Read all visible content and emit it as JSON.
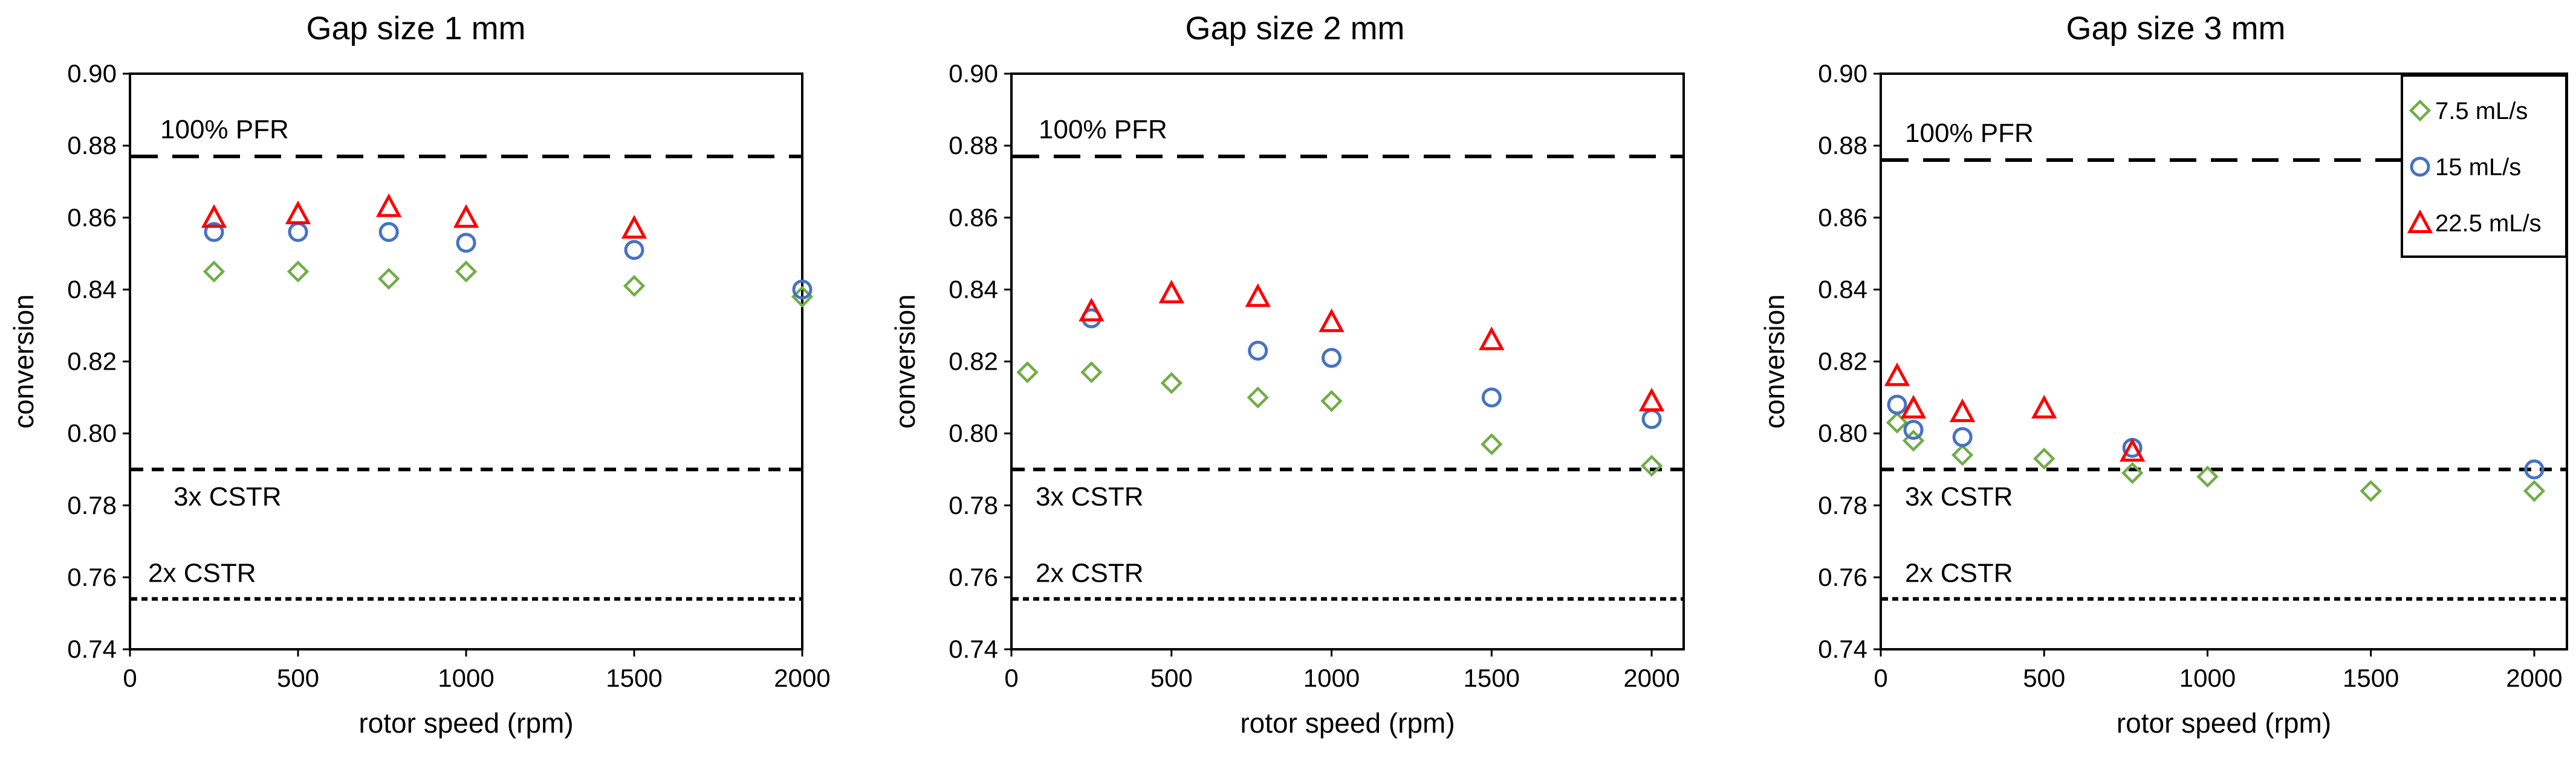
{
  "chart_data": [
    {
      "type": "scatter",
      "title": "Gap size 1 mm",
      "xlabel": "rotor speed (rpm)",
      "ylabel": "conversion",
      "xlim": [
        0,
        2000
      ],
      "ylim": [
        0.74,
        0.9
      ],
      "xticks": [
        "0",
        "500",
        "1000",
        "1500",
        "2000"
      ],
      "yticks": [
        "0.74",
        "0.76",
        "0.78",
        "0.80",
        "0.82",
        "0.84",
        "0.86",
        "0.88",
        "0.90"
      ],
      "grid": false,
      "series": [
        {
          "name": "7.5 mL/s",
          "marker": "diamond",
          "color": "#70AD47",
          "points": [
            [
              250,
              0.845
            ],
            [
              500,
              0.845
            ],
            [
              770,
              0.843
            ],
            [
              1000,
              0.845
            ],
            [
              1500,
              0.841
            ],
            [
              2000,
              0.838
            ]
          ]
        },
        {
          "name": "15 mL/s",
          "marker": "circle",
          "color": "#4472C4",
          "points": [
            [
              250,
              0.856
            ],
            [
              500,
              0.856
            ],
            [
              770,
              0.856
            ],
            [
              1000,
              0.853
            ],
            [
              1500,
              0.851
            ],
            [
              2000,
              0.84
            ]
          ]
        },
        {
          "name": "22.5 mL/s",
          "marker": "triangle",
          "color": "#FF0000",
          "points": [
            [
              250,
              0.86
            ],
            [
              500,
              0.861
            ],
            [
              770,
              0.863
            ],
            [
              1000,
              0.86
            ],
            [
              1500,
              0.857
            ]
          ]
        }
      ],
      "reference_lines": [
        {
          "label": "100% PFR",
          "y": 0.877,
          "style": "long-dash"
        },
        {
          "label": "3x CSTR",
          "y": 0.79,
          "style": "dash"
        },
        {
          "label": "2x CSTR",
          "y": 0.754,
          "style": "dot"
        }
      ]
    },
    {
      "type": "scatter",
      "title": "Gap size 2 mm",
      "xlabel": "rotor speed (rpm)",
      "ylabel": "conversion",
      "xlim": [
        0,
        2100
      ],
      "ylim": [
        0.74,
        0.9
      ],
      "xticks": [
        "0",
        "500",
        "1000",
        "1500",
        "2000"
      ],
      "yticks": [
        "0.74",
        "0.76",
        "0.78",
        "0.80",
        "0.82",
        "0.84",
        "0.86",
        "0.88",
        "0.90"
      ],
      "grid": false,
      "series": [
        {
          "name": "7.5 mL/s",
          "marker": "diamond",
          "color": "#70AD47",
          "points": [
            [
              50,
              0.817
            ],
            [
              250,
              0.817
            ],
            [
              500,
              0.814
            ],
            [
              770,
              0.81
            ],
            [
              1000,
              0.809
            ],
            [
              1500,
              0.797
            ],
            [
              2000,
              0.791
            ]
          ]
        },
        {
          "name": "15 mL/s",
          "marker": "circle",
          "color": "#4472C4",
          "points": [
            [
              250,
              0.832
            ],
            [
              770,
              0.823
            ],
            [
              1000,
              0.821
            ],
            [
              1500,
              0.81
            ],
            [
              2000,
              0.804
            ]
          ]
        },
        {
          "name": "22.5 mL/s",
          "marker": "triangle",
          "color": "#FF0000",
          "points": [
            [
              250,
              0.834
            ],
            [
              500,
              0.839
            ],
            [
              770,
              0.838
            ],
            [
              1000,
              0.831
            ],
            [
              1500,
              0.826
            ],
            [
              2000,
              0.809
            ]
          ]
        }
      ],
      "reference_lines": [
        {
          "label": "100% PFR",
          "y": 0.877,
          "style": "long-dash"
        },
        {
          "label": "3x CSTR",
          "y": 0.79,
          "style": "dash"
        },
        {
          "label": "2x CSTR",
          "y": 0.754,
          "style": "dot"
        }
      ]
    },
    {
      "type": "scatter",
      "title": "Gap size 3 mm",
      "xlabel": "rotor speed (rpm)",
      "ylabel": "conversion",
      "xlim": [
        0,
        2100
      ],
      "ylim": [
        0.74,
        0.9
      ],
      "xticks": [
        "0",
        "500",
        "1000",
        "1500",
        "2000"
      ],
      "yticks": [
        "0.74",
        "0.76",
        "0.78",
        "0.80",
        "0.82",
        "0.84",
        "0.86",
        "0.88",
        "0.90"
      ],
      "grid": false,
      "legend_position": "top-right",
      "legend": [
        "7.5 mL/s",
        "15 mL/s",
        "22.5 mL/s"
      ],
      "series": [
        {
          "name": "7.5 mL/s",
          "marker": "diamond",
          "color": "#70AD47",
          "points": [
            [
              50,
              0.803
            ],
            [
              100,
              0.798
            ],
            [
              250,
              0.794
            ],
            [
              500,
              0.793
            ],
            [
              770,
              0.789
            ],
            [
              1000,
              0.788
            ],
            [
              1500,
              0.784
            ],
            [
              2000,
              0.784
            ]
          ]
        },
        {
          "name": "15 mL/s",
          "marker": "circle",
          "color": "#4472C4",
          "points": [
            [
              50,
              0.808
            ],
            [
              100,
              0.801
            ],
            [
              250,
              0.799
            ],
            [
              770,
              0.796
            ],
            [
              2000,
              0.79
            ]
          ]
        },
        {
          "name": "22.5 mL/s",
          "marker": "triangle",
          "color": "#FF0000",
          "points": [
            [
              50,
              0.816
            ],
            [
              100,
              0.807
            ],
            [
              250,
              0.806
            ],
            [
              500,
              0.807
            ],
            [
              770,
              0.795
            ]
          ]
        }
      ],
      "reference_lines": [
        {
          "label": "100% PFR",
          "y": 0.876,
          "style": "long-dash"
        },
        {
          "label": "3x CSTR",
          "y": 0.79,
          "style": "dash"
        },
        {
          "label": "2x CSTR",
          "y": 0.754,
          "style": "dot"
        }
      ]
    }
  ]
}
